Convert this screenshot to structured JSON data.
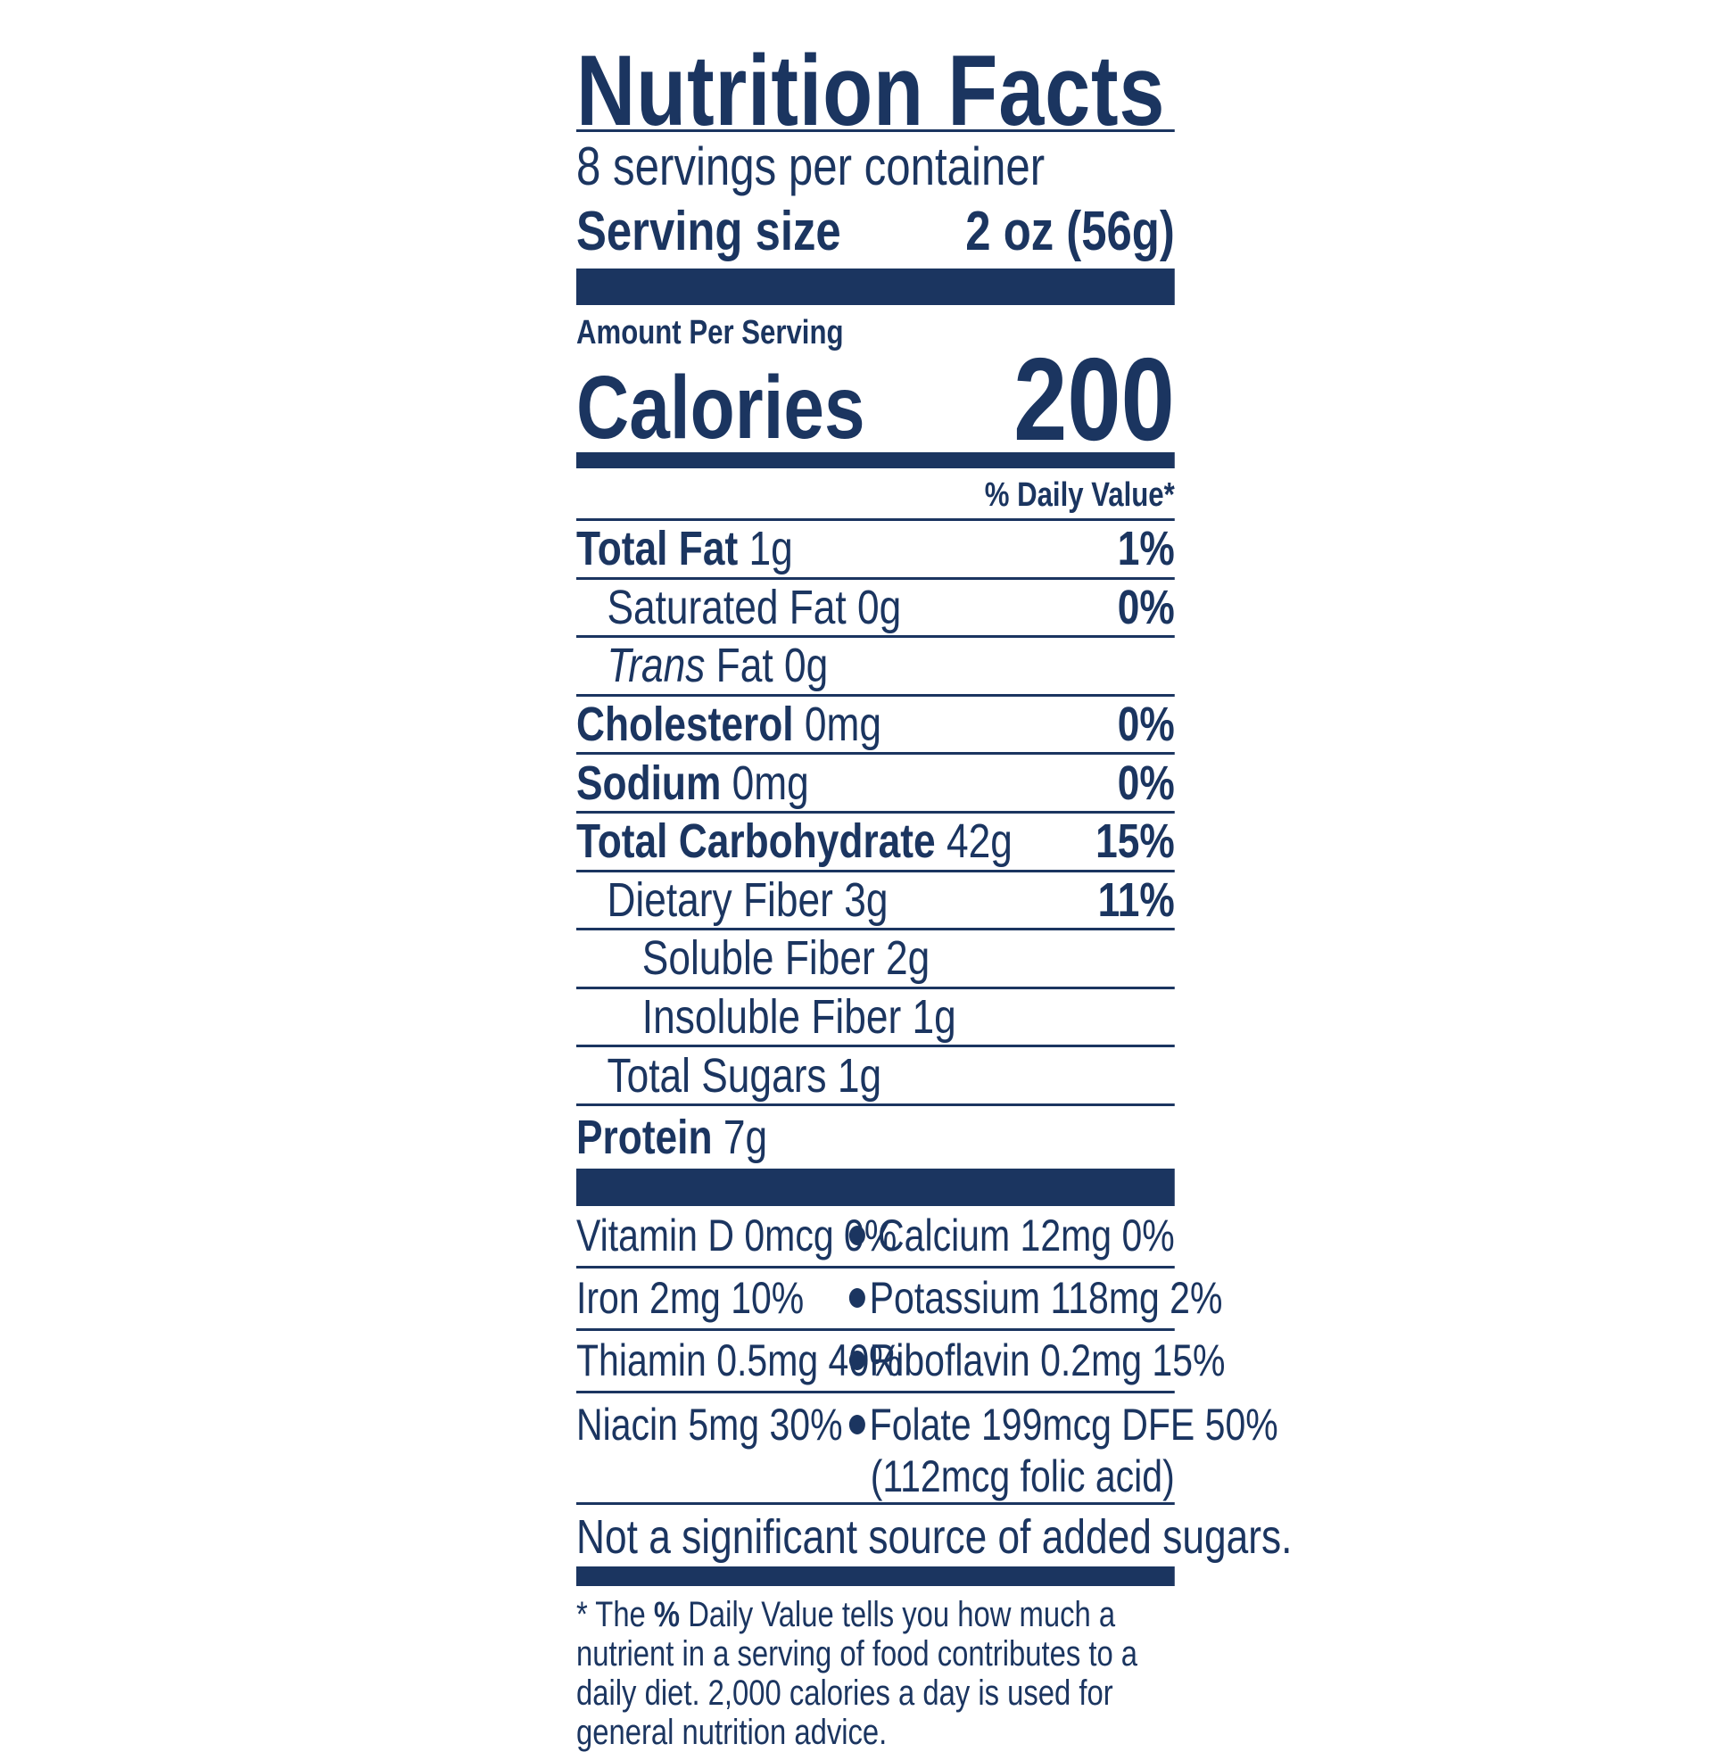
{
  "title": "Nutrition Facts",
  "servings_per_container": "8 servings per container",
  "serving_size": {
    "label": "Serving size",
    "value": "2 oz (56g)"
  },
  "amount_per_serving": "Amount Per Serving",
  "calories": {
    "label": "Calories",
    "value": "200"
  },
  "daily_value_header": "% Daily Value*",
  "nutrients": [
    {
      "name": "Total Fat",
      "amount": "1g",
      "dv": "1%",
      "bold": true,
      "indent": 0
    },
    {
      "name": "Saturated Fat",
      "amount": "0g",
      "dv": "0%",
      "bold": false,
      "indent": 1
    },
    {
      "name": "Trans",
      "name_suffix": "Fat",
      "amount": "0g",
      "dv": "",
      "bold": false,
      "indent": 1
    },
    {
      "name": "Cholesterol",
      "amount": "0mg",
      "dv": "0%",
      "bold": true,
      "indent": 0
    },
    {
      "name": "Sodium",
      "amount": "0mg",
      "dv": "0%",
      "bold": true,
      "indent": 0
    },
    {
      "name": "Total Carbohydrate",
      "amount": "42g",
      "dv": "15%",
      "bold": true,
      "indent": 0
    },
    {
      "name": "Dietary Fiber",
      "amount": "3g",
      "dv": "11%",
      "bold": false,
      "indent": 1
    },
    {
      "name": "Soluble Fiber",
      "amount": "2g",
      "dv": "",
      "bold": false,
      "indent": 2
    },
    {
      "name": "Insoluble Fiber",
      "amount": "1g",
      "dv": "",
      "bold": false,
      "indent": 2
    },
    {
      "name": "Total Sugars",
      "amount": "1g",
      "dv": "",
      "bold": false,
      "indent": 1
    },
    {
      "name": "Protein",
      "amount": "7g",
      "dv": "",
      "bold": true,
      "indent": 0
    }
  ],
  "vitamins": [
    {
      "left": "Vitamin D 0mcg 0%",
      "right": "Calcium 12mg 0%"
    },
    {
      "left": "Iron 2mg 10%",
      "right": "Potassium 118mg 2%"
    },
    {
      "left": "Thiamin 0.5mg 40%",
      "right": "Riboflavin 0.2mg 15%"
    },
    {
      "left": "Niacin 5mg 30%",
      "right": "Folate 199mcg DFE 50%",
      "right_sub": "(112mcg folic acid)"
    }
  ],
  "added_sugars_note": "Not a significant source of added sugars.",
  "footnote": {
    "star": "* The",
    "pct": "%",
    "text": "Daily Value tells you how much a nutrient in a serving of food contributes to a daily diet. 2,000 calories a day is used for general nutrition advice."
  },
  "colors": {
    "ink": "#1b3560",
    "background": "#ffffff"
  }
}
